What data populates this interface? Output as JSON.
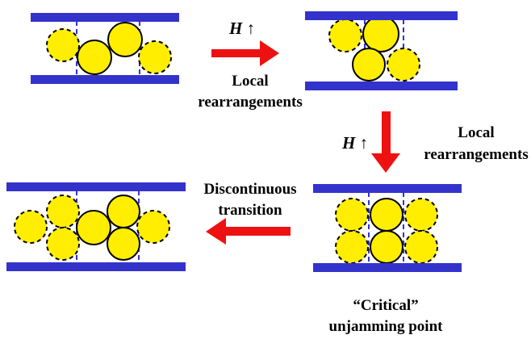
{
  "arrows": [
    {
      "field": "H",
      "direction": "↑",
      "label_lines": [
        "Local",
        "rearrangements"
      ]
    },
    {
      "field": "H",
      "direction": "↑",
      "label_lines": [
        "Local",
        "rearrangements"
      ]
    },
    {
      "label_lines": [
        "Discontinuous",
        "transition"
      ]
    }
  ],
  "states": [
    {
      "caption_lines": [
        "“Critical”",
        "unjamming point"
      ]
    }
  ]
}
